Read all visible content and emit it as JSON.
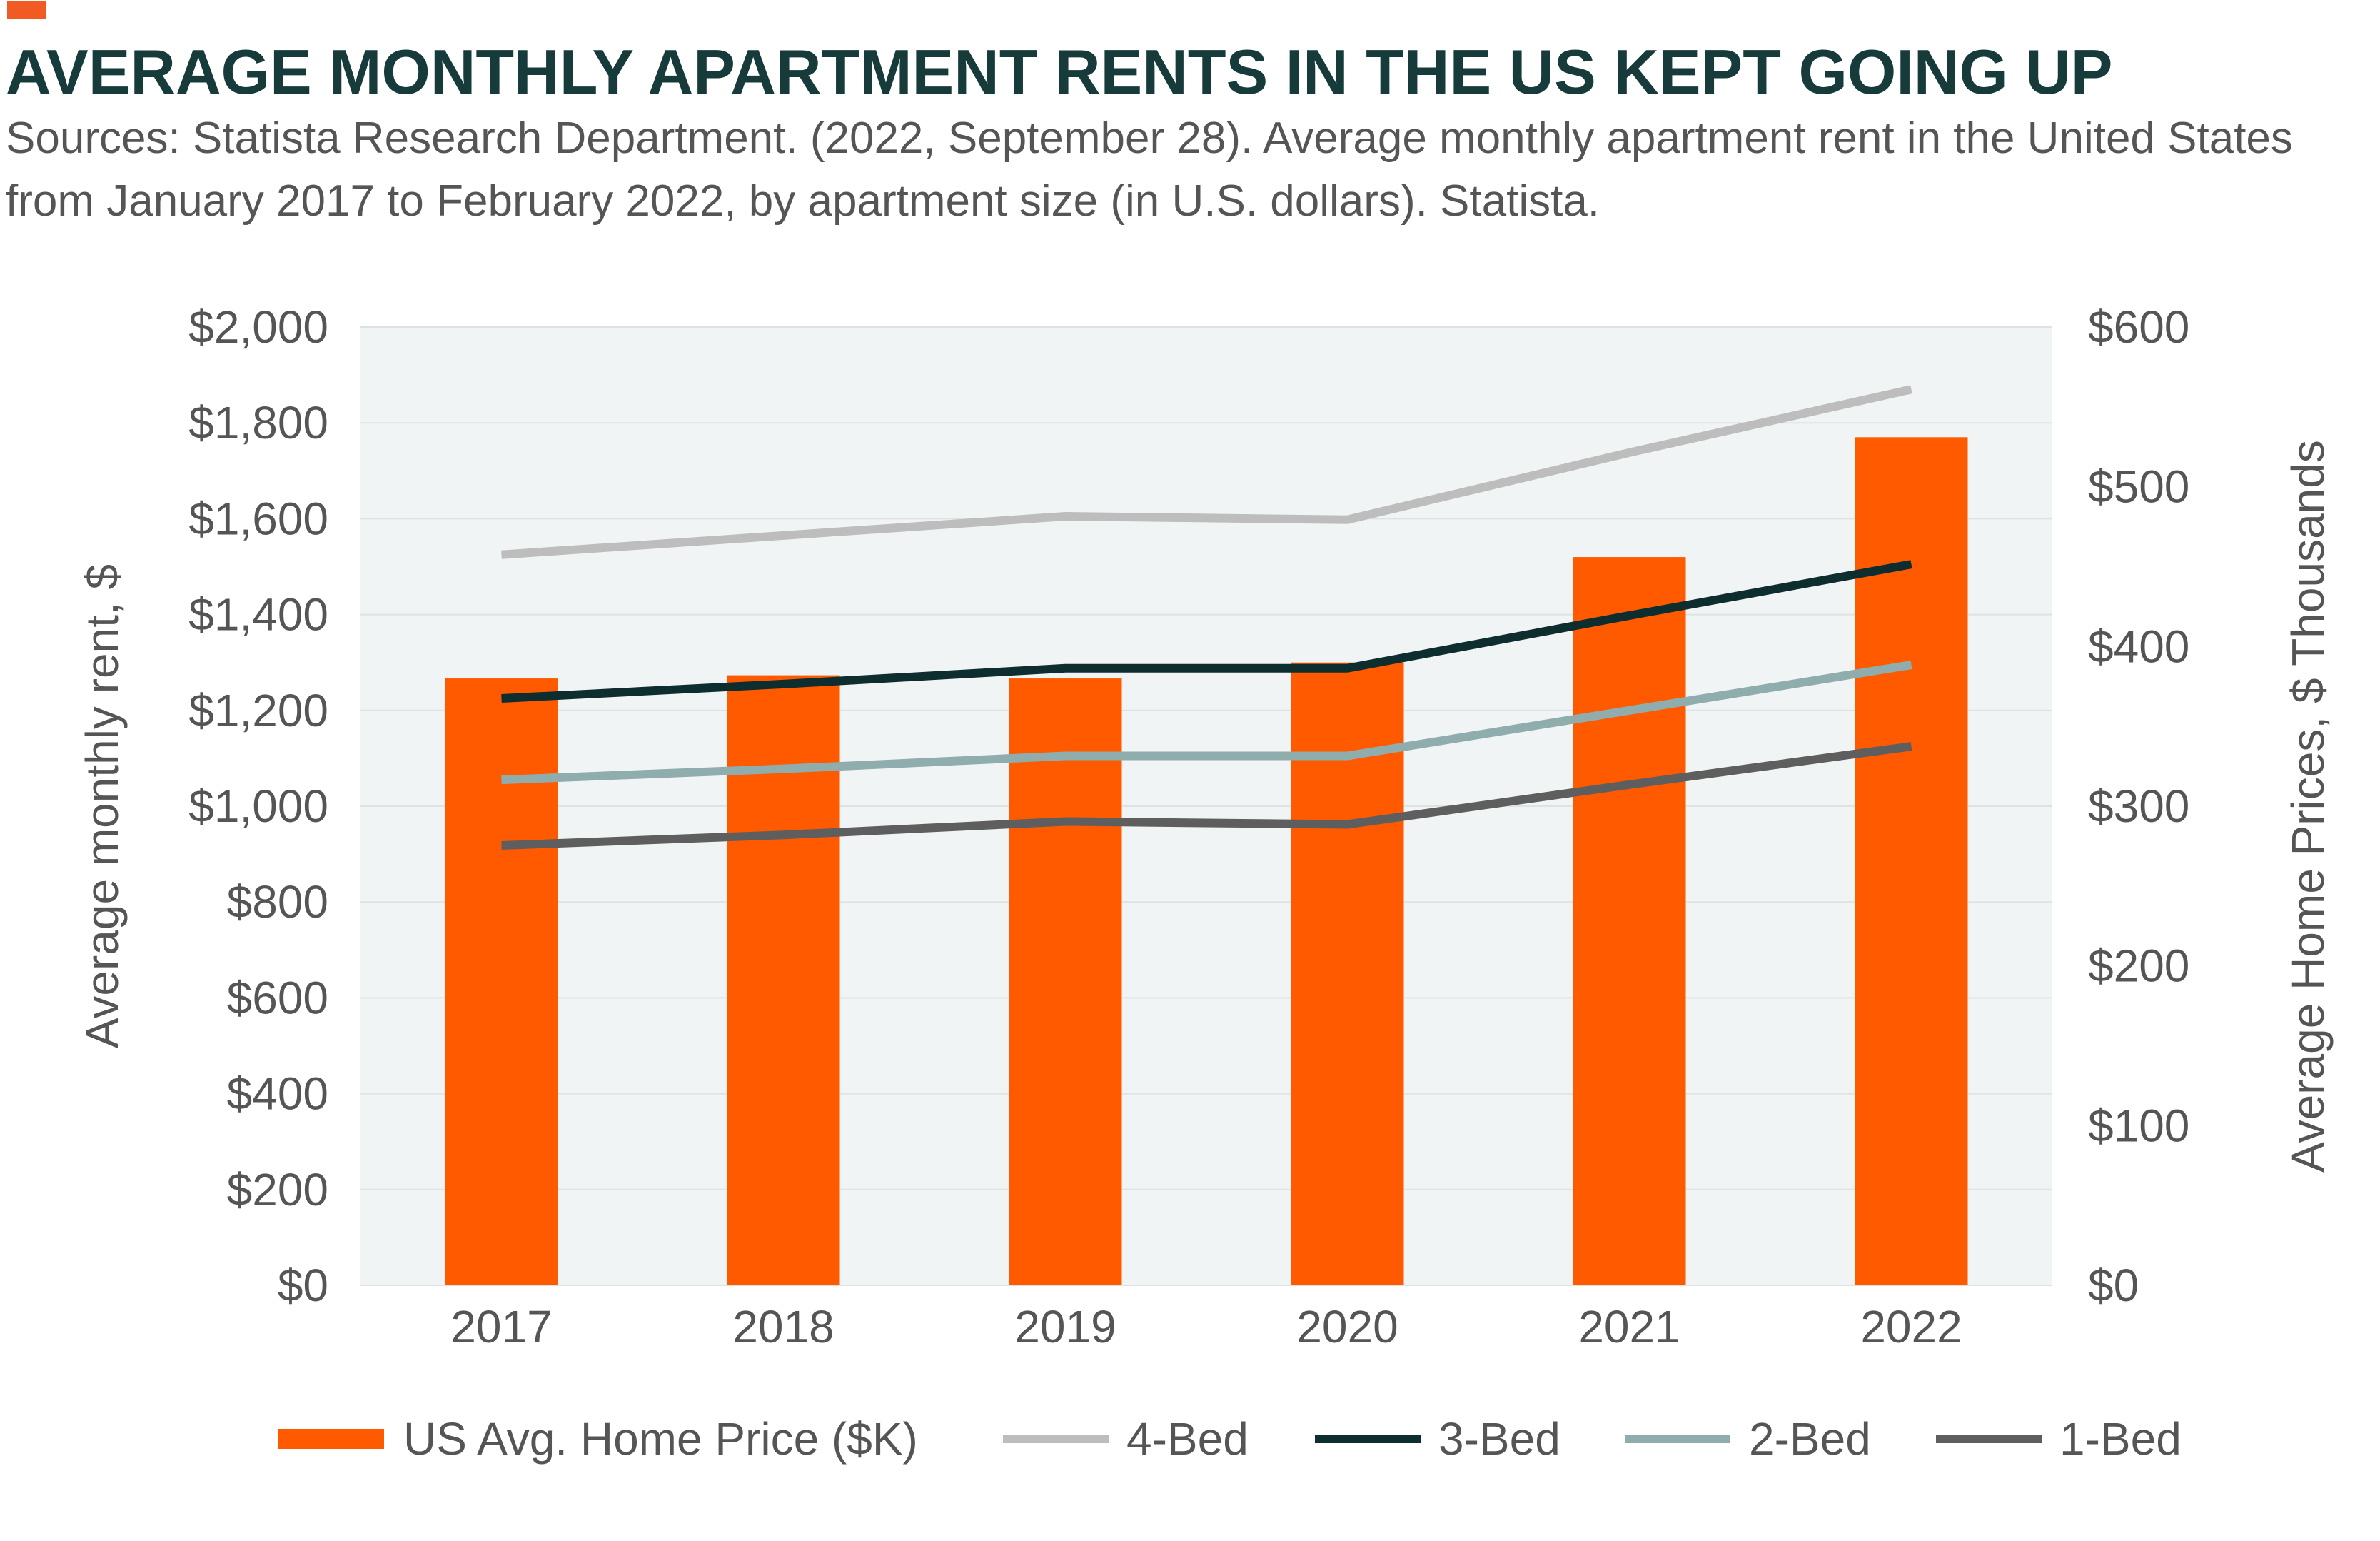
{
  "header": {
    "title": "AVERAGE MONTHLY APARTMENT RENTS IN THE US KEPT GOING UP",
    "subtitle": "Sources: Statista Research Department. (2022, September 28). Average monthly apartment rent in the United States from January 2017 to February 2022, by apartment size (in U.S. dollars). Statista."
  },
  "colors": {
    "accent": "#f15a22",
    "bars": "#ff5a00",
    "plot_background": "#f0f4f4",
    "gridline": "#dde3e3",
    "4-Bed": "#bdbdbd",
    "3-Bed": "#0d2d2f",
    "2-Bed": "#8fadad",
    "1-Bed": "#5e5e5e"
  },
  "chart_data": {
    "type": "bar",
    "categories": [
      "2017",
      "2018",
      "2019",
      "2020",
      "2021",
      "2022"
    ],
    "bar_series": {
      "name": "US Avg. Home Price ($K)",
      "axis": "right",
      "values": [
        380,
        382,
        380,
        390,
        456,
        531
      ]
    },
    "line_series": [
      {
        "name": "4-Bed",
        "axis": "left",
        "values": [
          1525,
          1565,
          1605,
          1598,
          1738,
          1870
        ]
      },
      {
        "name": "3-Bed",
        "axis": "left",
        "values": [
          1225,
          1255,
          1288,
          1288,
          1398,
          1505
        ]
      },
      {
        "name": "2-Bed",
        "axis": "left",
        "values": [
          1055,
          1078,
          1105,
          1105,
          1200,
          1295
        ]
      },
      {
        "name": "1-Bed",
        "axis": "left",
        "values": [
          918,
          940,
          968,
          962,
          1045,
          1125
        ]
      }
    ],
    "ylabel": "Average monthly rent, $",
    "y2label": "Average Home Prices, $ Thousands",
    "ylim": [
      0,
      2000
    ],
    "y2lim": [
      0,
      600
    ],
    "yticks": [
      "$0",
      "$200",
      "$400",
      "$600",
      "$800",
      "$1,000",
      "$1,200",
      "$1,400",
      "$1,600",
      "$1,800",
      "$2,000"
    ],
    "y2ticks": [
      "$0",
      "$100",
      "$200",
      "$300",
      "$400",
      "$500",
      "$600"
    ],
    "grid": true,
    "legend_position": "bottom",
    "legend": [
      "US Avg. Home Price ($K)",
      "4-Bed",
      "3-Bed",
      "2-Bed",
      "1-Bed"
    ]
  }
}
